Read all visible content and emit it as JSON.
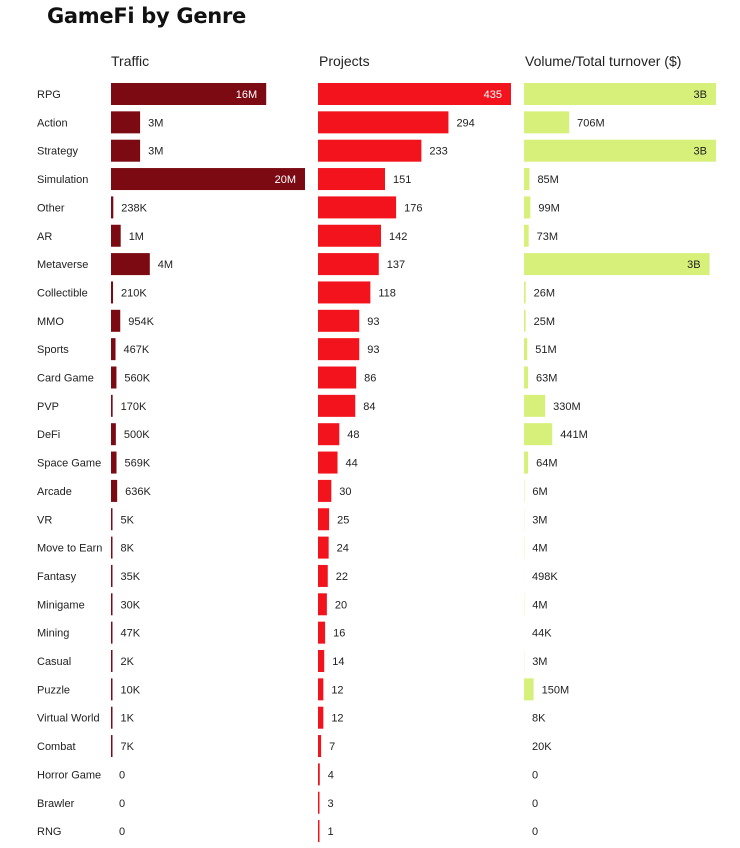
{
  "chart_data": {
    "type": "bar",
    "title": "GameFi by Genre",
    "categories": [
      "RPG",
      "Action",
      "Strategy",
      "Simulation",
      "Other",
      "AR",
      "Metaverse",
      "Collectible",
      "MMO",
      "Sports",
      "Card Game",
      "PVP",
      "DeFi",
      "Space Game",
      "Arcade",
      "VR",
      "Move to Earn",
      "Fantasy",
      "Minigame",
      "Mining",
      "Casual",
      "Puzzle",
      "Virtual World",
      "Combat",
      "Horror Game",
      "Brawler",
      "RNG"
    ],
    "series": [
      {
        "name": "Traffic",
        "color": "#7b0a12",
        "max": 20000000,
        "values": [
          16000000,
          3000000,
          3000000,
          20000000,
          238000,
          1000000,
          4000000,
          210000,
          954000,
          467000,
          560000,
          170000,
          500000,
          569000,
          636000,
          5000,
          8000,
          35000,
          30000,
          47000,
          2000,
          10000,
          1000,
          7000,
          0,
          0,
          0
        ],
        "labels": [
          "16M",
          "3M",
          "3M",
          "20M",
          "238K",
          "1M",
          "4M",
          "210K",
          "954K",
          "467K",
          "560K",
          "170K",
          "500K",
          "569K",
          "636K",
          "5K",
          "8K",
          "35K",
          "30K",
          "47K",
          "2K",
          "10K",
          "1K",
          "7K",
          "0",
          "0",
          "0"
        ]
      },
      {
        "name": "Projects",
        "color": "#f2131c",
        "max": 435,
        "values": [
          435,
          294,
          233,
          151,
          176,
          142,
          137,
          118,
          93,
          93,
          86,
          84,
          48,
          44,
          30,
          25,
          24,
          22,
          20,
          16,
          14,
          12,
          12,
          7,
          4,
          3,
          1
        ],
        "labels": [
          "435",
          "294",
          "233",
          "151",
          "176",
          "142",
          "137",
          "118",
          "93",
          "93",
          "86",
          "84",
          "48",
          "44",
          "30",
          "25",
          "24",
          "22",
          "20",
          "16",
          "14",
          "12",
          "12",
          "7",
          "4",
          "3",
          "1"
        ]
      },
      {
        "name": "Volume/Total turnover ($)",
        "color": "#d6f07a",
        "max": 3000000000,
        "values": [
          3000000000,
          706000000,
          3000000000,
          85000000,
          99000000,
          73000000,
          2900000000,
          26000000,
          25000000,
          51000000,
          63000000,
          330000000,
          441000000,
          64000000,
          6000000,
          3000000,
          4000000,
          498000,
          4000000,
          44000,
          3000000,
          150000000,
          8000,
          20000,
          0,
          0,
          0
        ],
        "labels": [
          "3B",
          "706M",
          "3B",
          "85M",
          "99M",
          "73M",
          "3B",
          "26M",
          "25M",
          "51M",
          "63M",
          "330M",
          "441M",
          "64M",
          "6M",
          "3M",
          "4M",
          "498K",
          "4M",
          "44K",
          "3M",
          "150M",
          "8K",
          "20K",
          "0",
          "0",
          "0"
        ]
      }
    ]
  }
}
